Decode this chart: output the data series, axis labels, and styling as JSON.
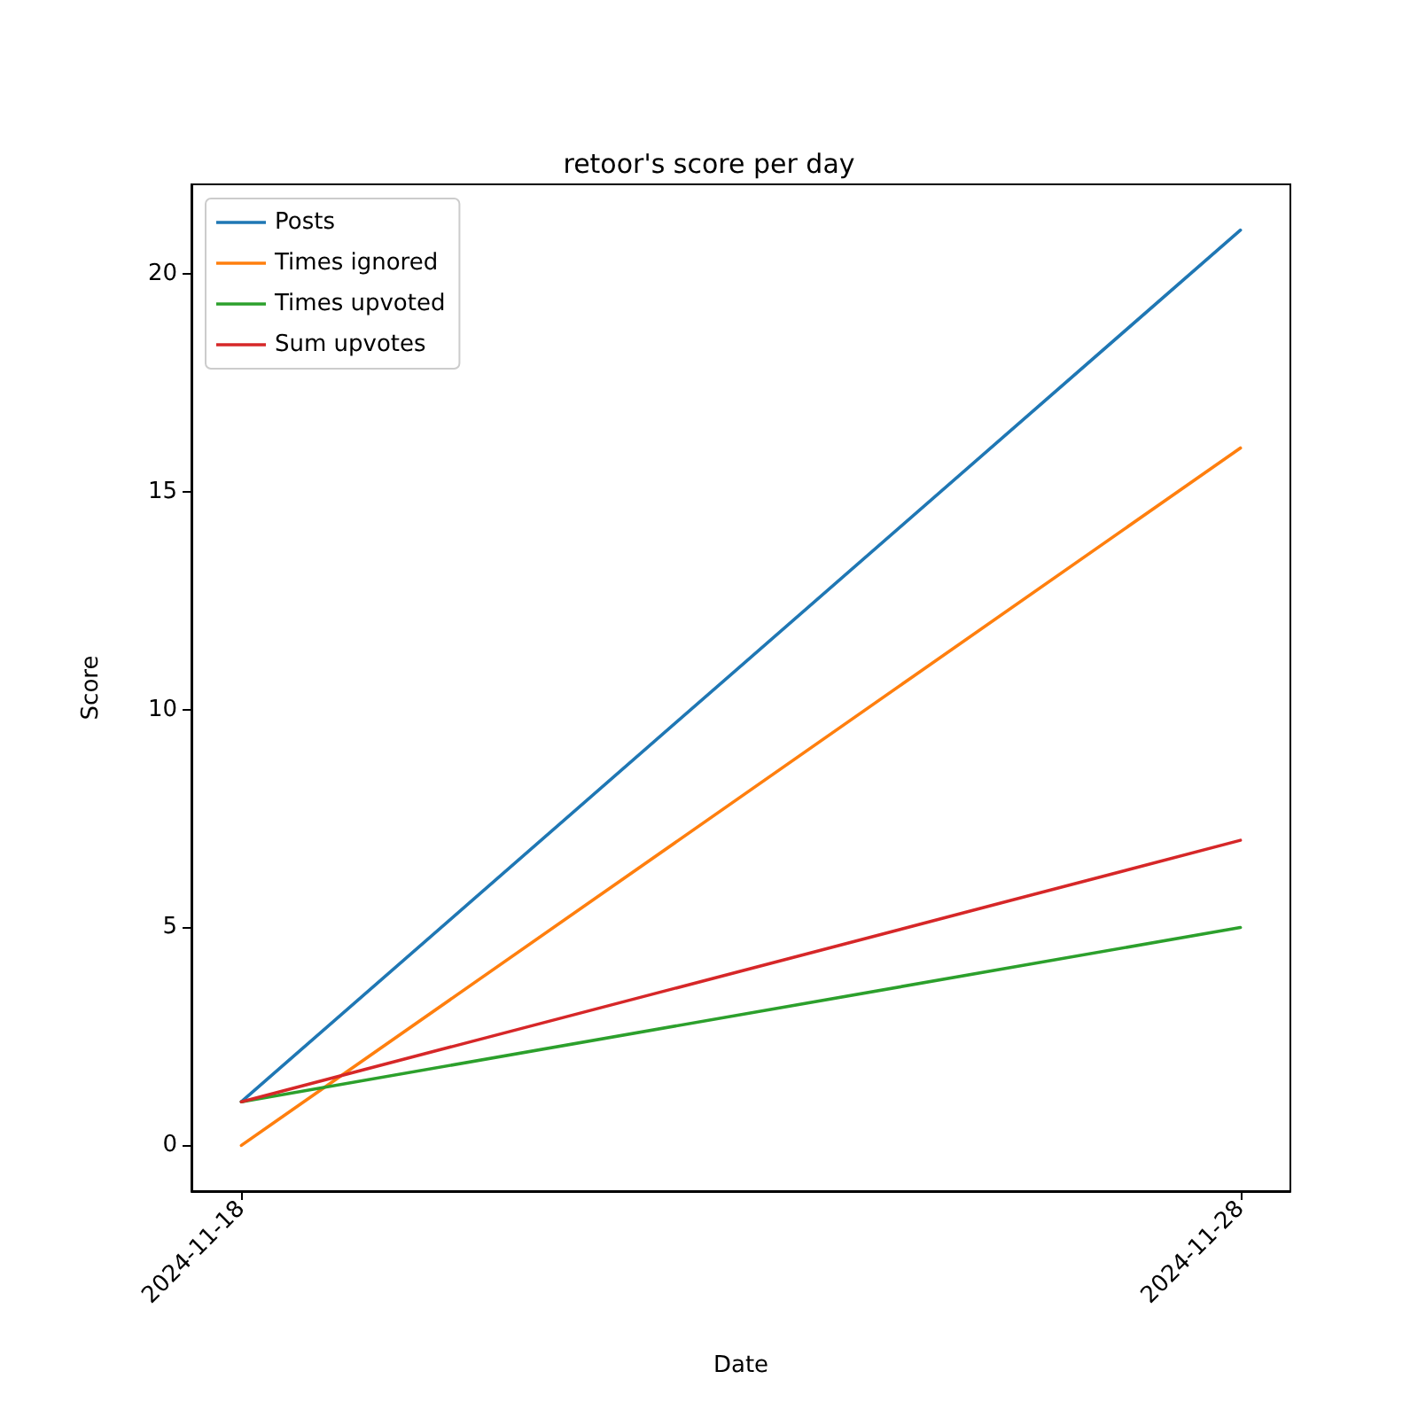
{
  "chart_data": {
    "type": "line",
    "title": "retoor's score per day",
    "xlabel": "Date",
    "ylabel": "Score",
    "x": [
      "2024-11-18",
      "2024-11-28"
    ],
    "xlim": [
      "2024-11-17T12:00",
      "2024-11-28T12:00"
    ],
    "xticks": [
      "2024-11-18",
      "2024-11-28"
    ],
    "ylim": [
      -1.05,
      22.05
    ],
    "yticks": [
      0,
      5,
      10,
      15,
      20
    ],
    "series": [
      {
        "name": "Posts",
        "color": "#1f77b4",
        "values": [
          1,
          21
        ]
      },
      {
        "name": "Times ignored",
        "color": "#ff7f0e",
        "values": [
          0,
          16
        ]
      },
      {
        "name": "Times upvoted",
        "color": "#2ca02c",
        "values": [
          1,
          5
        ]
      },
      {
        "name": "Sum upvotes",
        "color": "#d62728",
        "values": [
          1,
          7
        ]
      }
    ],
    "legend": "top left",
    "grid": false,
    "marker": "none",
    "line_style": "solid"
  }
}
